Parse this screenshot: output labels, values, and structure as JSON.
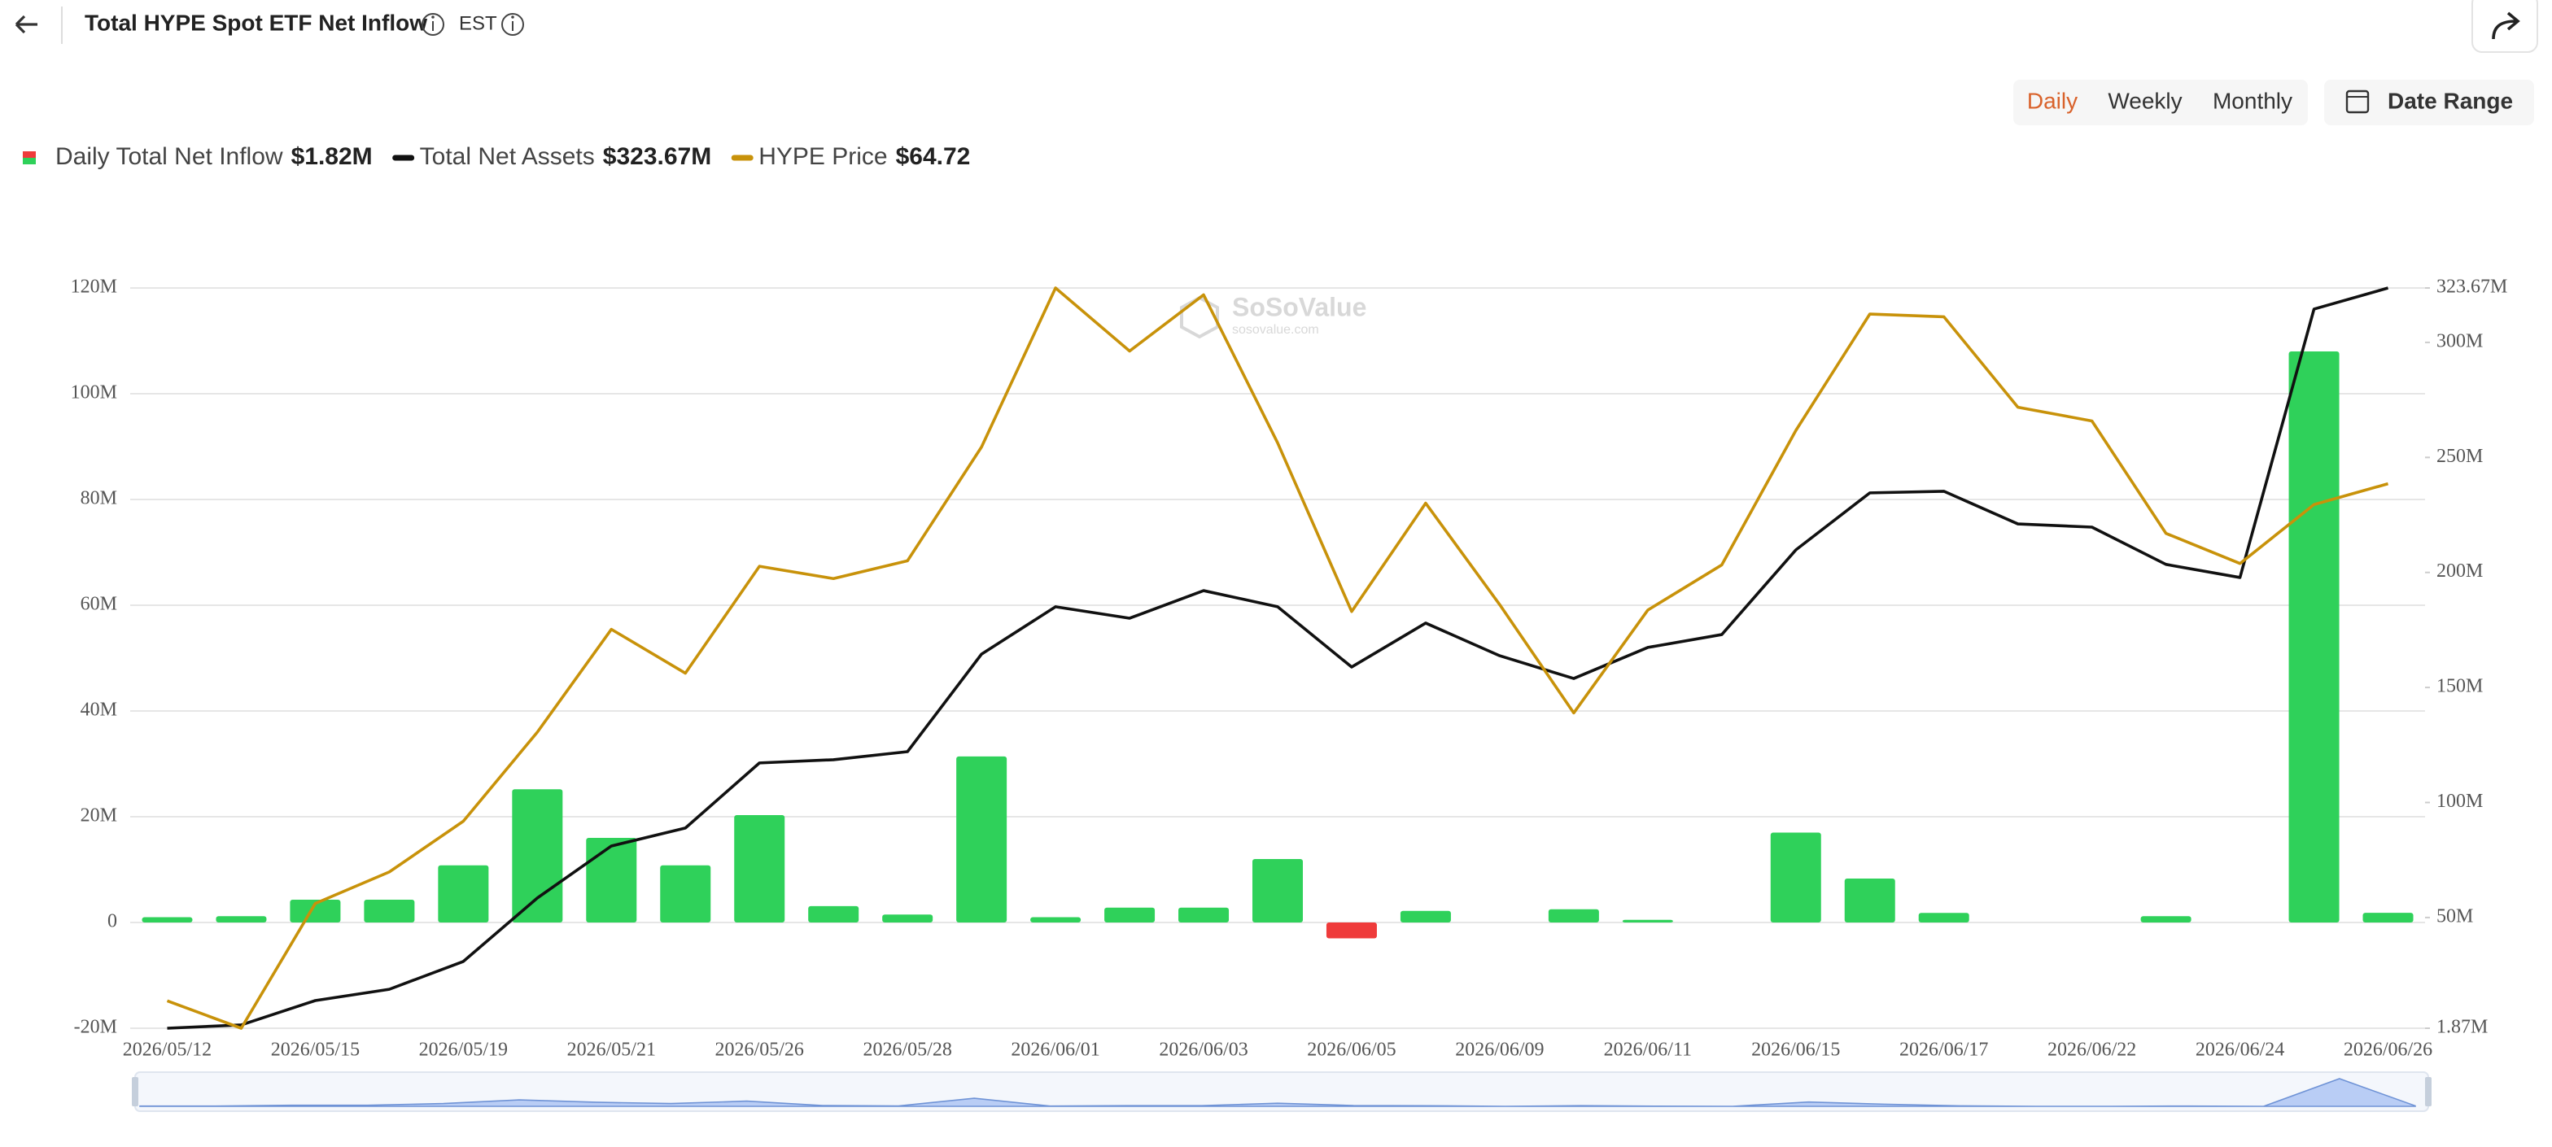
{
  "header": {
    "title": "Total HYPE Spot ETF Net Inflow",
    "timezone": "EST"
  },
  "controls": {
    "periods": [
      "Daily",
      "Weekly",
      "Monthly"
    ],
    "active": "Daily",
    "date_range": "Date Range"
  },
  "watermark": {
    "brand": "SoSoValue",
    "site": "sosovalue.com"
  },
  "chart_data": {
    "type": "bar",
    "categories": [
      "2026/05/12",
      null,
      "2026/05/15",
      null,
      "2026/05/19",
      null,
      "2026/05/21",
      null,
      "2026/05/26",
      null,
      "2026/05/28",
      null,
      "2026/06/01",
      null,
      "2026/06/03",
      null,
      "2026/06/05",
      null,
      "2026/06/09",
      null,
      "2026/06/11",
      null,
      "2026/06/15",
      null,
      "2026/06/17",
      null,
      "2026/06/22",
      null,
      "2026/06/24",
      null,
      "2026/06/26"
    ],
    "series": [
      {
        "name": "Daily Total Net Inflow",
        "legend_value": "$1.82M",
        "type": "bar",
        "color": "#2fd15a",
        "negative_color": "#ef3b3b",
        "values": [
          1,
          1.2,
          4.3,
          4.3,
          10.8,
          25.2,
          16,
          10.8,
          20.3,
          3.1,
          1.5,
          31.4,
          1,
          2.8,
          2.8,
          12,
          -3,
          2.2,
          0,
          2.5,
          0.5,
          0,
          17,
          8.3,
          1.8,
          0,
          0,
          1.2,
          0,
          108,
          1.82
        ]
      },
      {
        "name": "Total Net Assets",
        "legend_value": "$323.67M",
        "type": "line",
        "axis": "y2",
        "color": "#111111",
        "values": [
          1.87,
          3.3,
          13.9,
          18.8,
          30.9,
          58.5,
          81.1,
          88.9,
          117.2,
          118.6,
          122.1,
          164.5,
          185.1,
          180.1,
          192.1,
          185.1,
          158.9,
          178,
          163.8,
          153.9,
          167.4,
          173,
          209.8,
          234.6,
          235.3,
          221.1,
          219.7,
          203.5,
          197.8,
          314.5,
          323.67
        ]
      },
      {
        "name": "HYPE Price",
        "legend_value": "$64.72",
        "type": "line",
        "axis": "y3",
        "color": "#c8920a",
        "values": [
          27,
          25,
          34.1,
          36.4,
          40.1,
          46.6,
          54.1,
          50.9,
          58.7,
          57.8,
          59.1,
          67.4,
          79,
          74.4,
          78.5,
          67.7,
          55.4,
          63.3,
          55.9,
          48,
          55.5,
          58.8,
          68.6,
          77.1,
          76.9,
          70.3,
          69.3,
          61.1,
          58.9,
          63.2,
          64.72
        ]
      }
    ],
    "ylim": [
      -20,
      120
    ],
    "yticks": [
      {
        "value": -20,
        "label": "-20M"
      },
      0,
      {
        "value": 20,
        "label": "20M"
      },
      {
        "value": 40,
        "label": "40M"
      },
      {
        "value": 60,
        "label": "60M"
      },
      {
        "value": 80,
        "label": "80M"
      },
      {
        "value": 100,
        "label": "100M"
      },
      {
        "value": 120,
        "label": "120M"
      }
    ],
    "y2lim": [
      1.87,
      323.67
    ],
    "y2ticks": [
      {
        "value": 1.87,
        "label": "1.87M"
      },
      {
        "value": 50,
        "label": "50M"
      },
      {
        "value": 100,
        "label": "100M"
      },
      {
        "value": 150,
        "label": "150M"
      },
      {
        "value": 200,
        "label": "200M"
      },
      {
        "value": 250,
        "label": "250M"
      },
      {
        "value": 300,
        "label": "300M"
      },
      {
        "value": 323.67,
        "label": "323.67M"
      }
    ],
    "y3lim": [
      25,
      79
    ],
    "grid": true
  }
}
